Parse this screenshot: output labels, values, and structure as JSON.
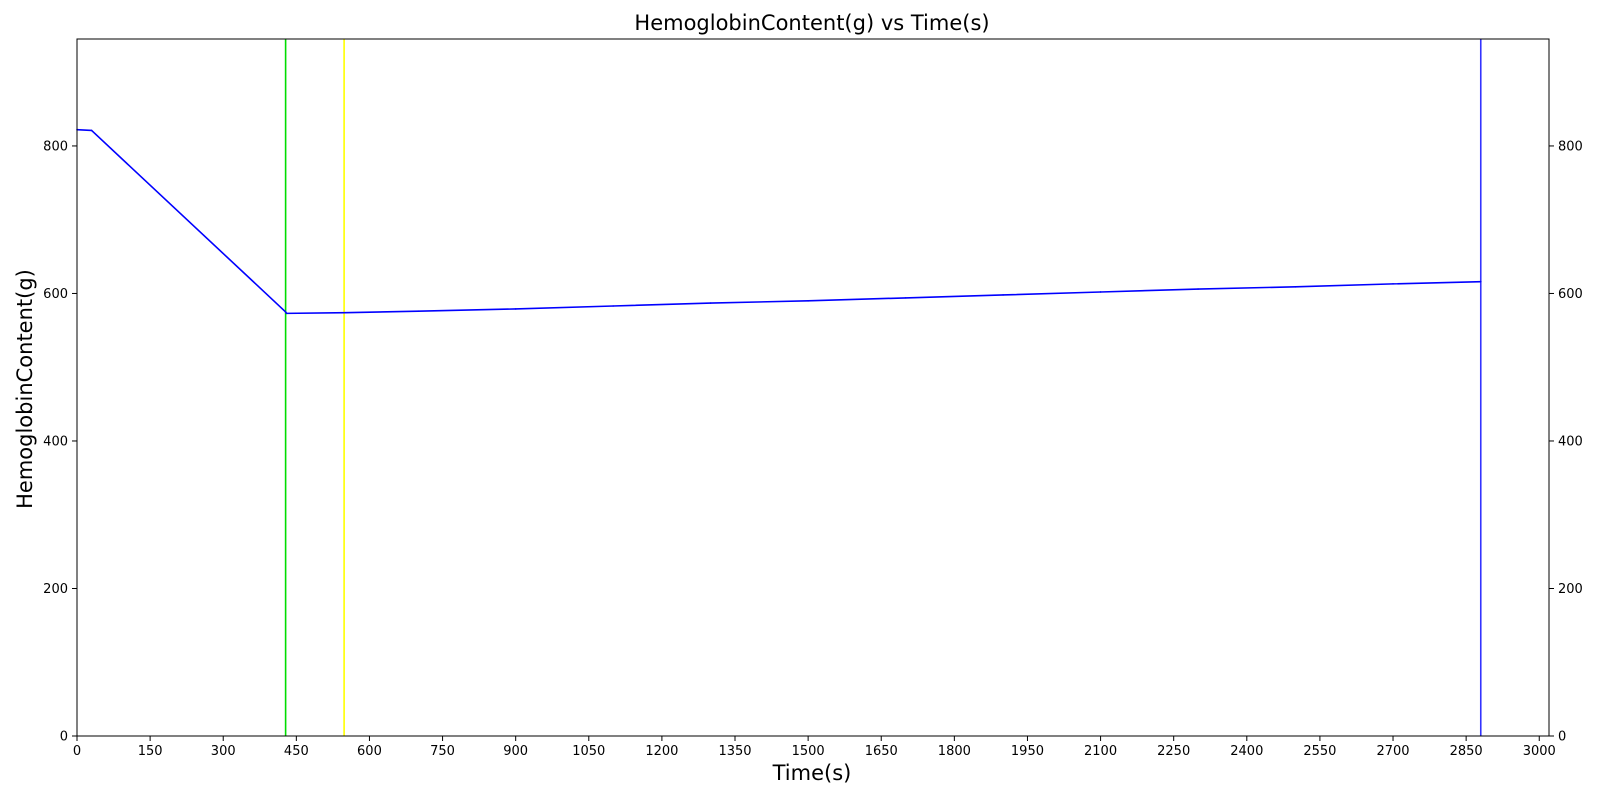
{
  "chart_data": {
    "type": "line",
    "title": "HemoglobinContent(g) vs Time(s)",
    "xlabel": "Time(s)",
    "ylabel": "HemoglobinContent(g)",
    "xlim": [
      0,
      3020
    ],
    "ylim": [
      0,
      945
    ],
    "x_ticks": [
      0,
      150,
      300,
      450,
      600,
      750,
      900,
      1050,
      1200,
      1350,
      1500,
      1650,
      1800,
      1950,
      2100,
      2250,
      2400,
      2550,
      2700,
      2850,
      3000
    ],
    "y_ticks": [
      0,
      200,
      400,
      600,
      800
    ],
    "right_y_ticks": [
      0,
      200,
      400,
      600,
      800
    ],
    "grid": false,
    "series": [
      {
        "color": "#0000ff",
        "x": [
          0,
          30,
          428,
          430,
          550,
          700,
          900,
          1100,
          1300,
          1500,
          1700,
          1900,
          2100,
          2300,
          2500,
          2700,
          2880
        ],
        "y": [
          822,
          821,
          575,
          573,
          574,
          576,
          579,
          583,
          587,
          590,
          594,
          598,
          602,
          606,
          609,
          613,
          616
        ]
      }
    ],
    "vertical_lines": [
      {
        "x": 428,
        "color": "#00dd00"
      },
      {
        "x": 548,
        "color": "#ffff00"
      },
      {
        "x": 2880,
        "color": "#3333ff"
      }
    ]
  }
}
